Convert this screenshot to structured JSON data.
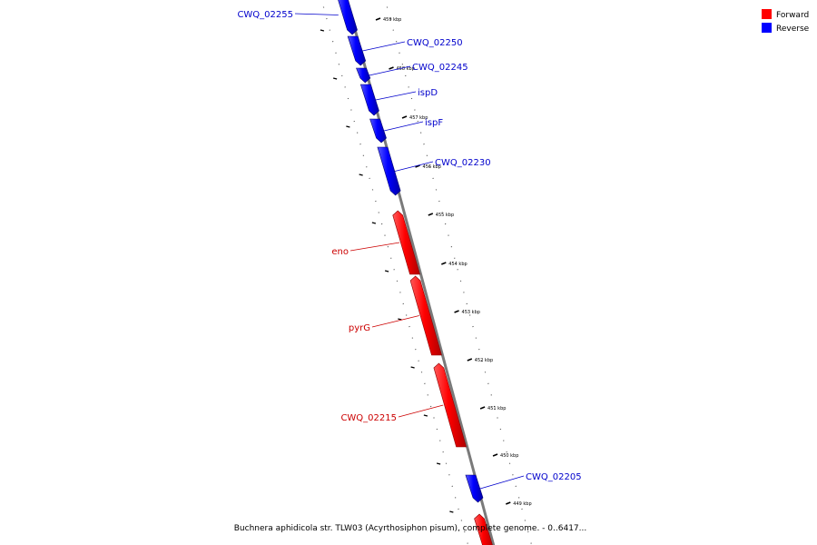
{
  "legend": [
    {
      "label": "Forward",
      "color": "#ff0000"
    },
    {
      "label": "Reverse",
      "color": "#0000ff"
    }
  ],
  "ticks": [
    "459 kbp",
    "458 kbp",
    "457 kbp",
    "456 kbp",
    "455 kbp",
    "454 kbp",
    "453 kbp",
    "452 kbp",
    "451 kbp",
    "450 kbp",
    "449 kbp"
  ],
  "genes": [
    {
      "name": "CWQ_02255",
      "strand": "reverse"
    },
    {
      "name": "CWQ_02250",
      "strand": "reverse"
    },
    {
      "name": "CWQ_02245",
      "strand": "reverse"
    },
    {
      "name": "ispD",
      "strand": "reverse"
    },
    {
      "name": "ispF",
      "strand": "reverse"
    },
    {
      "name": "CWQ_02230",
      "strand": "reverse"
    },
    {
      "name": "eno",
      "strand": "forward"
    },
    {
      "name": "pyrG",
      "strand": "forward"
    },
    {
      "name": "CWQ_02215",
      "strand": "forward"
    },
    {
      "name": "CWQ_02205",
      "strand": "reverse"
    },
    {
      "name": "",
      "strand": "forward"
    }
  ],
  "caption": "Buchnera aphidicola str. TLW03 (Acyrthosiphon pisum), complete genome. - 0..6417..."
}
